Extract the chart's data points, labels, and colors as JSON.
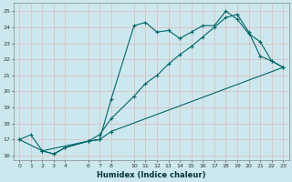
{
  "xlabel": "Humidex (Indice chaleur)",
  "background_color": "#cce8ee",
  "grid_color": "#bbdddd",
  "line_color": "#006666",
  "ylim": [
    15.7,
    25.5
  ],
  "xlim": [
    -0.5,
    23.5
  ],
  "yticks": [
    16,
    17,
    18,
    19,
    20,
    21,
    22,
    23,
    24,
    25
  ],
  "xticks": [
    0,
    1,
    2,
    3,
    4,
    6,
    7,
    8,
    10,
    11,
    12,
    13,
    14,
    15,
    16,
    17,
    18,
    19,
    20,
    21,
    22,
    23
  ],
  "curve1_x": [
    0,
    1,
    2,
    6,
    7,
    8,
    10,
    11,
    12,
    13,
    14,
    15,
    16,
    17,
    18,
    19,
    20,
    21,
    22,
    23
  ],
  "curve1_y": [
    17.0,
    17.3,
    16.3,
    16.9,
    17.0,
    19.5,
    24.1,
    24.3,
    23.7,
    23.8,
    23.3,
    23.7,
    24.1,
    24.1,
    25.0,
    24.5,
    23.6,
    23.1,
    21.9,
    21.5
  ],
  "curve2_x": [
    0,
    2,
    3,
    4,
    6,
    7,
    8,
    23
  ],
  "curve2_y": [
    17.0,
    16.3,
    16.1,
    16.5,
    16.9,
    17.0,
    17.5,
    21.5
  ],
  "curve3_x": [
    2,
    3,
    4,
    6,
    7,
    8,
    10,
    11,
    12,
    13,
    14,
    15,
    16,
    17,
    18,
    19,
    20,
    21,
    22,
    23
  ],
  "curve3_y": [
    16.3,
    16.1,
    16.5,
    16.9,
    17.3,
    18.3,
    19.7,
    20.5,
    21.0,
    21.7,
    22.3,
    22.8,
    23.4,
    24.0,
    24.6,
    24.8,
    23.7,
    22.2,
    21.9,
    21.5
  ]
}
